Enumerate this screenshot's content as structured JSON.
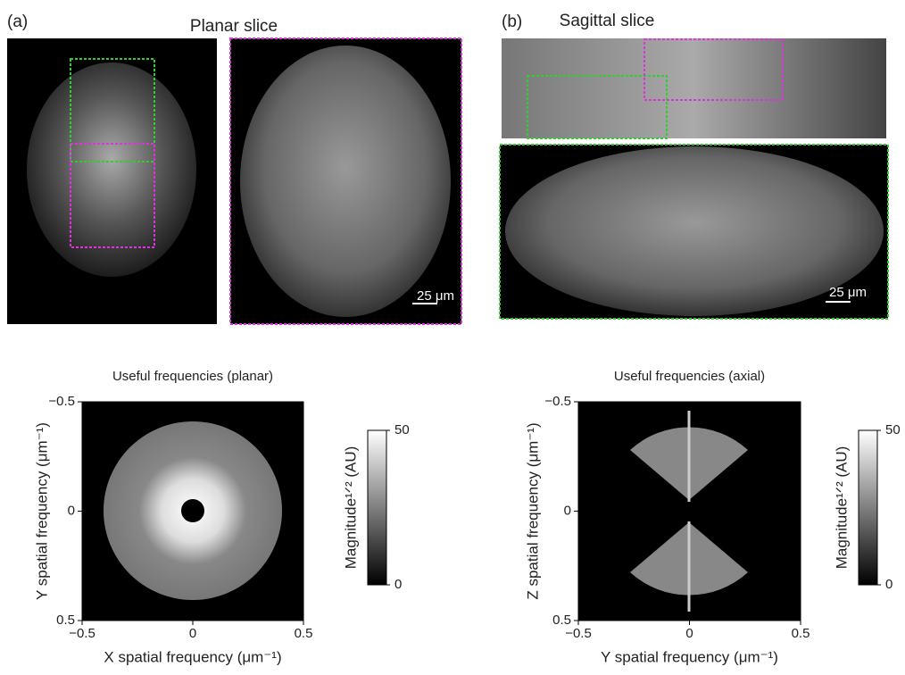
{
  "panels": [
    {
      "label": "(a)",
      "title": "Planar slice",
      "scale_bar": "25 μm"
    },
    {
      "label": "(b)",
      "title": "Sagittal slice",
      "scale_bar": "25 μm"
    }
  ],
  "plots": [
    {
      "title": "Useful frequencies (planar)",
      "xlabel": "X spatial frequency (μm⁻¹)",
      "ylabel": "Y spatial frequency (μm⁻¹)",
      "xlim": [
        -0.5,
        0.5
      ],
      "xticks": [
        {
          "value": -0.5,
          "label": "−0.5"
        },
        0,
        0.5
      ],
      "ylim": [
        -0.5,
        0.5
      ],
      "yticks": [
        {
          "value": -0.5,
          "label": "−0.5"
        },
        0,
        0.5
      ],
      "yreversed": true,
      "colorbar_label": "Magnitude¹ᐟ² (AU)",
      "clim": [
        0,
        50
      ],
      "cticks": [
        0,
        50
      ]
    },
    {
      "title": "Useful frequencies (axial)",
      "xlabel": "Y spatial frequency (μm⁻¹)",
      "ylabel": "Z spatial frequency (μm⁻¹)",
      "xlim": [
        -0.5,
        0.5
      ],
      "xticks": [
        {
          "value": -0.5,
          "label": "−0.5"
        },
        0,
        0.5
      ],
      "ylim": [
        -0.5,
        0.5
      ],
      "yticks": [
        {
          "value": -0.5,
          "label": "−0.5"
        },
        0,
        0.5
      ],
      "yreversed": true,
      "colorbar_label": "Magnitude¹ᐟ² (AU)",
      "clim": [
        0,
        50
      ],
      "cticks": [
        0,
        50
      ]
    }
  ]
}
